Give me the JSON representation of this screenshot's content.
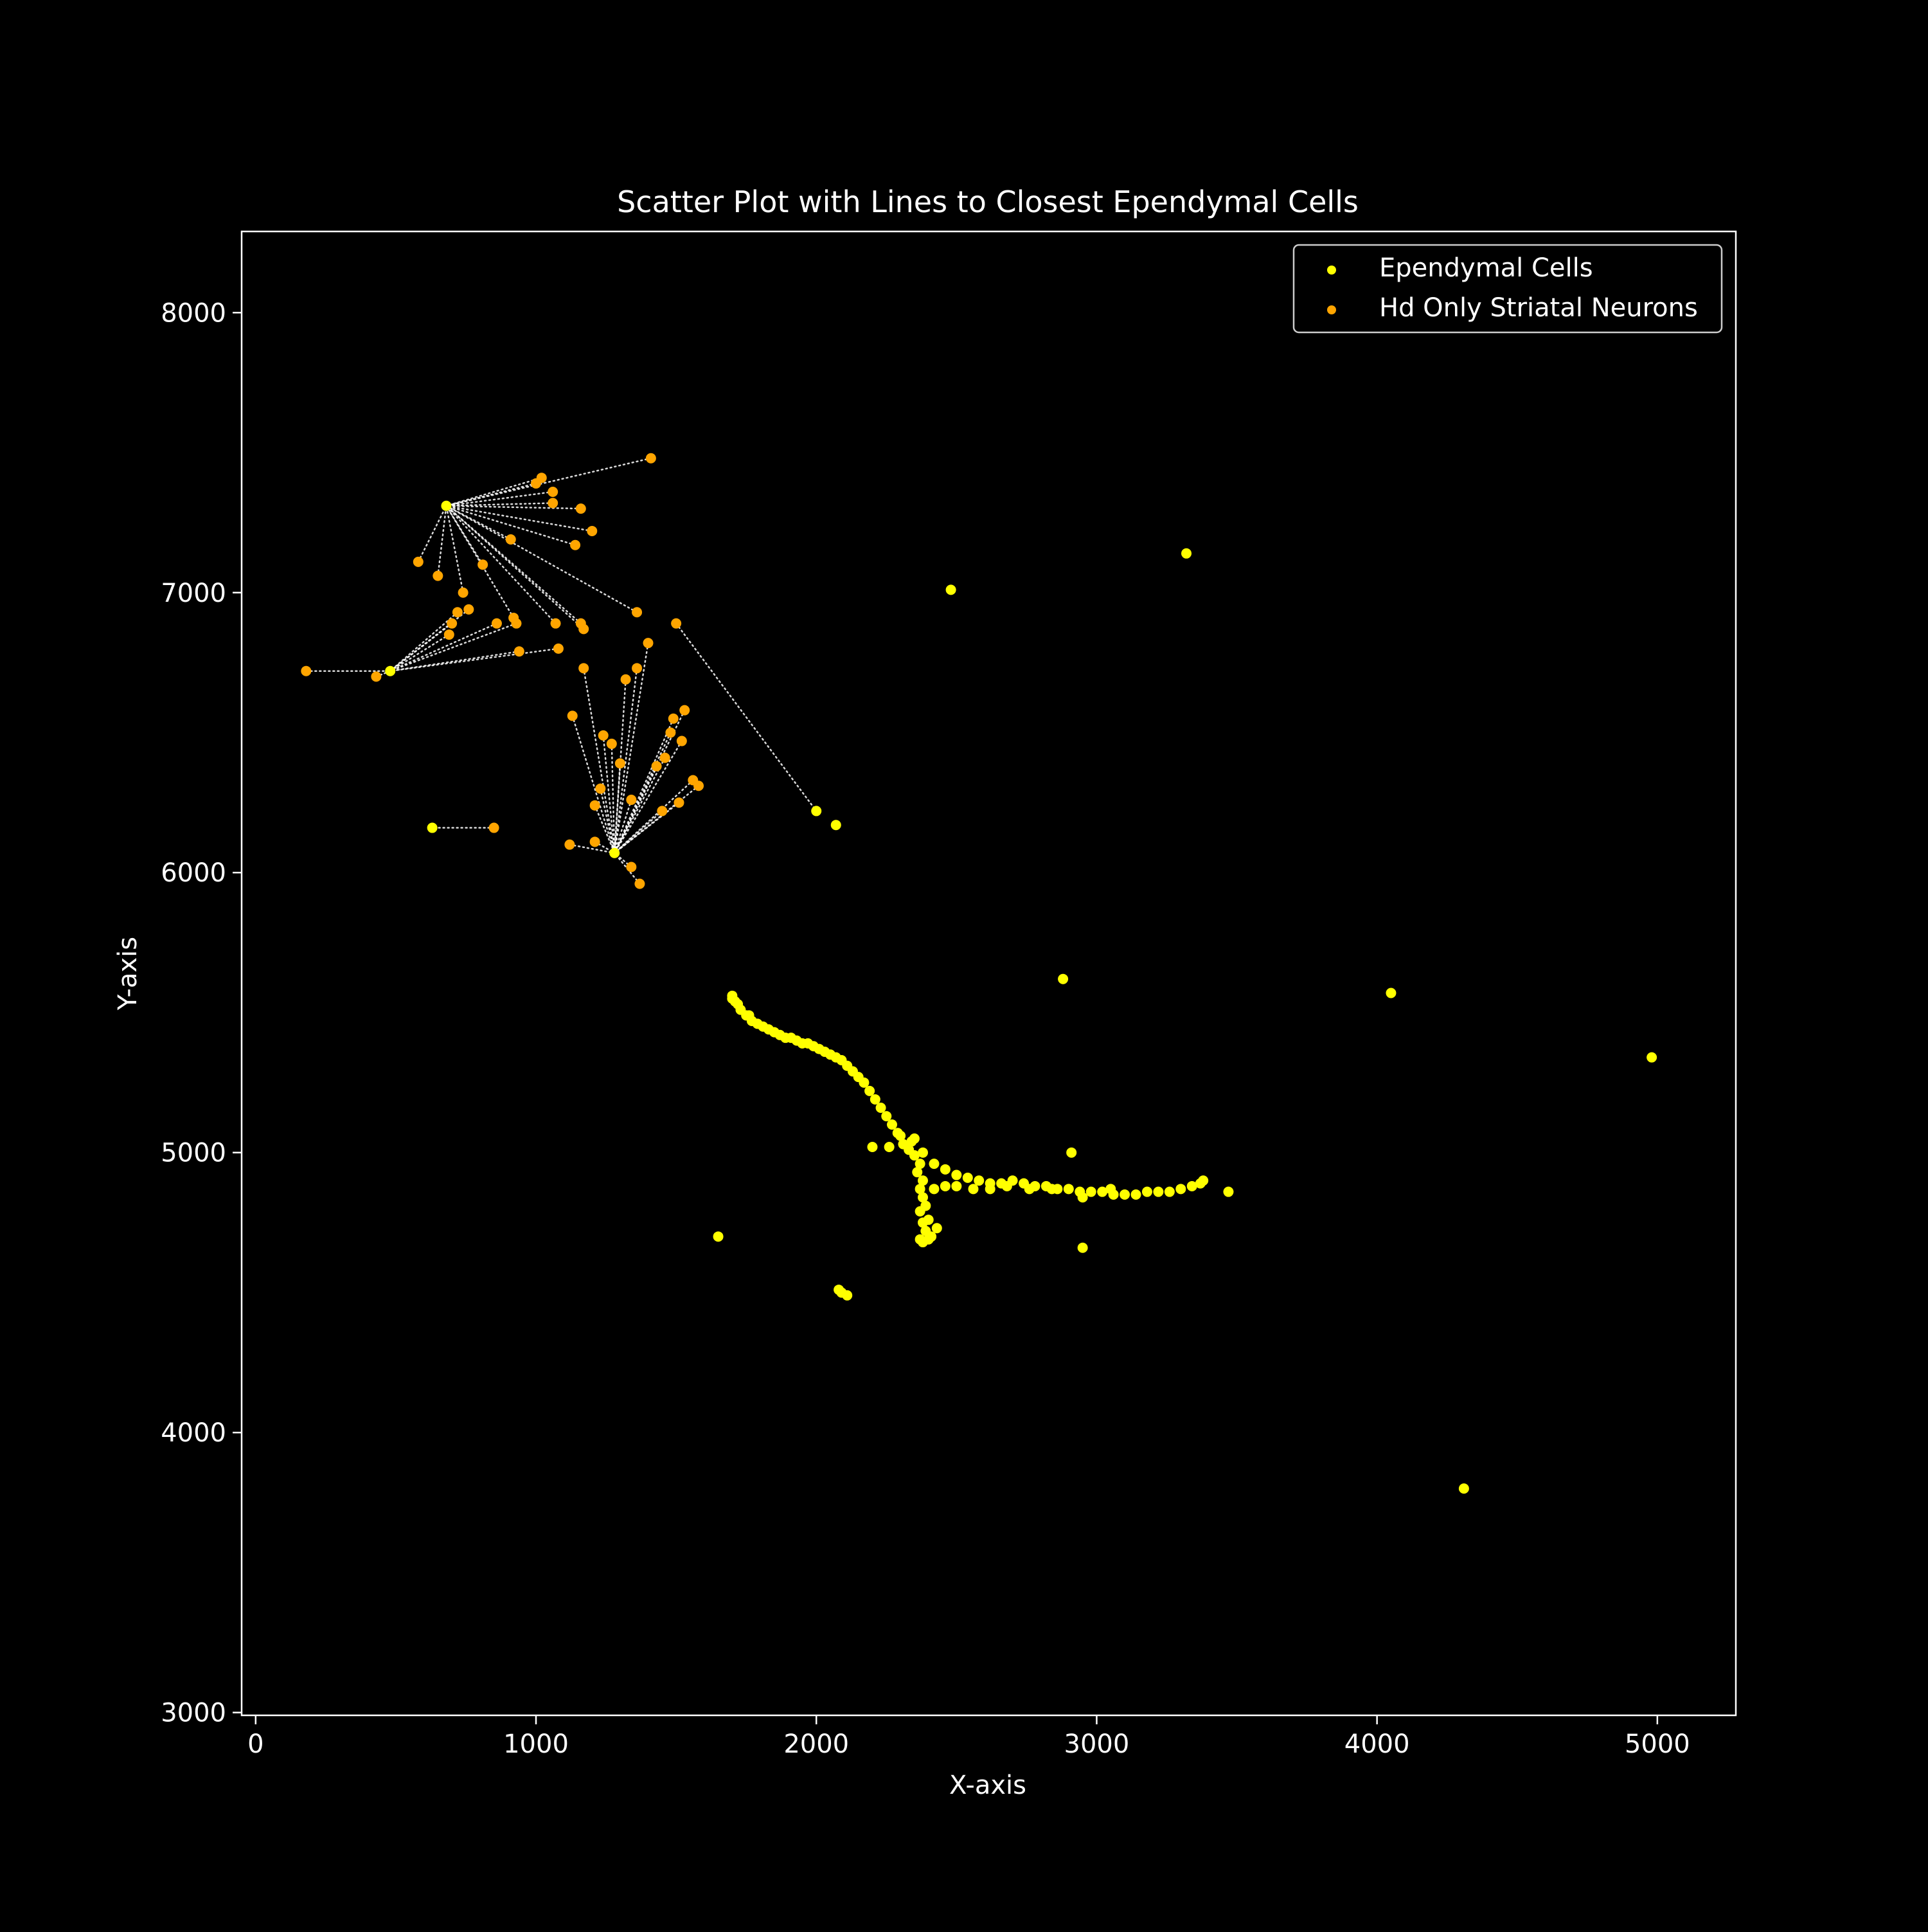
{
  "chart_data": {
    "type": "scatter",
    "title": "Scatter Plot with Lines to Closest Ependymal Cells",
    "xlabel": "X-axis",
    "ylabel": "Y-axis",
    "xlim": [
      -50,
      5280
    ],
    "ylim": [
      2990,
      8290
    ],
    "xticks": [
      0,
      1000,
      2000,
      3000,
      4000,
      5000
    ],
    "yticks": [
      3000,
      4000,
      5000,
      6000,
      7000,
      8000
    ],
    "grid": false,
    "legend_position": "top-right",
    "colors": {
      "background": "#000000",
      "axes": "#ffffff",
      "ependymal": "#ffff00",
      "neurons": "#ffa500",
      "connector": "#ffffff"
    },
    "series": [
      {
        "name": "Ependymal Cells",
        "points": [
          [
            680,
            7310
          ],
          [
            480,
            6720
          ],
          [
            1280,
            6070
          ],
          [
            2000,
            6220
          ],
          [
            2070,
            6170
          ],
          [
            2480,
            7010
          ],
          [
            3320,
            7140
          ],
          [
            2880,
            5620
          ],
          [
            2910,
            5000
          ],
          [
            4050,
            5570
          ],
          [
            3380,
            4900
          ],
          [
            1700,
            5560
          ],
          [
            630,
            6160
          ],
          [
            4980,
            5340
          ],
          [
            4310,
            3800
          ],
          [
            1650,
            4700
          ],
          [
            2200,
            5020
          ],
          [
            2950,
            4660
          ],
          [
            3470,
            4860
          ],
          [
            2090,
            4500
          ],
          [
            2110,
            4490
          ],
          [
            2080,
            4510
          ],
          [
            2430,
            4730
          ],
          [
            2380,
            4680
          ],
          [
            2400,
            4690
          ],
          [
            2370,
            4690
          ],
          [
            2390,
            4720
          ],
          [
            2410,
            4700
          ],
          [
            2380,
            4750
          ],
          [
            2400,
            4760
          ],
          [
            2370,
            4790
          ],
          [
            2390,
            4810
          ],
          [
            2380,
            4840
          ],
          [
            2370,
            4870
          ],
          [
            2380,
            4900
          ],
          [
            2360,
            4930
          ],
          [
            2370,
            4960
          ],
          [
            2350,
            4990
          ],
          [
            2330,
            5010
          ],
          [
            2340,
            5040
          ],
          [
            2310,
            5030
          ],
          [
            2290,
            5070
          ],
          [
            2270,
            5100
          ],
          [
            2250,
            5130
          ],
          [
            2230,
            5160
          ],
          [
            2210,
            5190
          ],
          [
            2190,
            5220
          ],
          [
            2170,
            5250
          ],
          [
            2150,
            5270
          ],
          [
            2130,
            5290
          ],
          [
            2110,
            5310
          ],
          [
            2090,
            5330
          ],
          [
            2070,
            5340
          ],
          [
            2050,
            5350
          ],
          [
            2030,
            5360
          ],
          [
            2010,
            5370
          ],
          [
            1990,
            5380
          ],
          [
            1970,
            5390
          ],
          [
            1950,
            5390
          ],
          [
            1930,
            5400
          ],
          [
            1910,
            5410
          ],
          [
            1890,
            5410
          ],
          [
            1870,
            5420
          ],
          [
            1850,
            5430
          ],
          [
            1830,
            5440
          ],
          [
            1810,
            5450
          ],
          [
            1790,
            5460
          ],
          [
            1770,
            5470
          ],
          [
            1750,
            5490
          ],
          [
            1730,
            5510
          ],
          [
            1720,
            5530
          ],
          [
            1710,
            5540
          ],
          [
            1700,
            5550
          ],
          [
            2420,
            4960
          ],
          [
            2460,
            4940
          ],
          [
            2500,
            4920
          ],
          [
            2540,
            4910
          ],
          [
            2580,
            4900
          ],
          [
            2620,
            4890
          ],
          [
            2660,
            4890
          ],
          [
            2700,
            4900
          ],
          [
            2740,
            4890
          ],
          [
            2780,
            4880
          ],
          [
            2820,
            4880
          ],
          [
            2860,
            4870
          ],
          [
            2900,
            4870
          ],
          [
            2940,
            4860
          ],
          [
            2980,
            4860
          ],
          [
            3020,
            4860
          ],
          [
            3060,
            4850
          ],
          [
            3100,
            4850
          ],
          [
            3140,
            4850
          ],
          [
            3180,
            4860
          ],
          [
            3220,
            4860
          ],
          [
            3260,
            4860
          ],
          [
            3300,
            4870
          ],
          [
            3340,
            4880
          ],
          [
            3370,
            4890
          ],
          [
            2500,
            4880
          ],
          [
            2460,
            4880
          ],
          [
            2420,
            4870
          ],
          [
            2560,
            4870
          ],
          [
            2620,
            4870
          ],
          [
            2680,
            4880
          ],
          [
            2760,
            4870
          ],
          [
            2840,
            4870
          ],
          [
            2950,
            4840
          ],
          [
            3050,
            4870
          ],
          [
            2380,
            5000
          ],
          [
            2300,
            5060
          ],
          [
            2260,
            5020
          ],
          [
            2350,
            5050
          ],
          [
            1760,
            5490
          ]
        ]
      },
      {
        "name": "Hd Only Striatal Neurons",
        "points": [
          [
            1410,
            7480
          ],
          [
            1020,
            7410
          ],
          [
            1000,
            7390
          ],
          [
            1060,
            7360
          ],
          [
            1160,
            7300
          ],
          [
            1060,
            7320
          ],
          [
            1200,
            7220
          ],
          [
            1140,
            7170
          ],
          [
            910,
            7190
          ],
          [
            580,
            7110
          ],
          [
            810,
            7100
          ],
          [
            650,
            7060
          ],
          [
            740,
            7000
          ],
          [
            760,
            6940
          ],
          [
            720,
            6930
          ],
          [
            700,
            6890
          ],
          [
            690,
            6850
          ],
          [
            860,
            6890
          ],
          [
            920,
            6910
          ],
          [
            930,
            6890
          ],
          [
            1070,
            6890
          ],
          [
            1170,
            6870
          ],
          [
            1360,
            6930
          ],
          [
            1160,
            6890
          ],
          [
            1080,
            6800
          ],
          [
            940,
            6790
          ],
          [
            180,
            6720
          ],
          [
            430,
            6700
          ],
          [
            850,
            6160
          ],
          [
            1120,
            6100
          ],
          [
            1210,
            6110
          ],
          [
            1340,
            6020
          ],
          [
            1370,
            5960
          ],
          [
            1130,
            6560
          ],
          [
            1170,
            6730
          ],
          [
            1400,
            6820
          ],
          [
            1500,
            6890
          ],
          [
            1360,
            6730
          ],
          [
            1320,
            6690
          ],
          [
            1240,
            6490
          ],
          [
            1270,
            6460
          ],
          [
            1300,
            6390
          ],
          [
            1340,
            6260
          ],
          [
            1210,
            6240
          ],
          [
            1230,
            6300
          ],
          [
            1480,
            6500
          ],
          [
            1520,
            6470
          ],
          [
            1560,
            6330
          ],
          [
            1430,
            6380
          ],
          [
            1460,
            6410
          ],
          [
            1510,
            6250
          ],
          [
            1450,
            6220
          ],
          [
            1580,
            6310
          ],
          [
            1490,
            6550
          ],
          [
            1530,
            6580
          ]
        ]
      }
    ]
  }
}
